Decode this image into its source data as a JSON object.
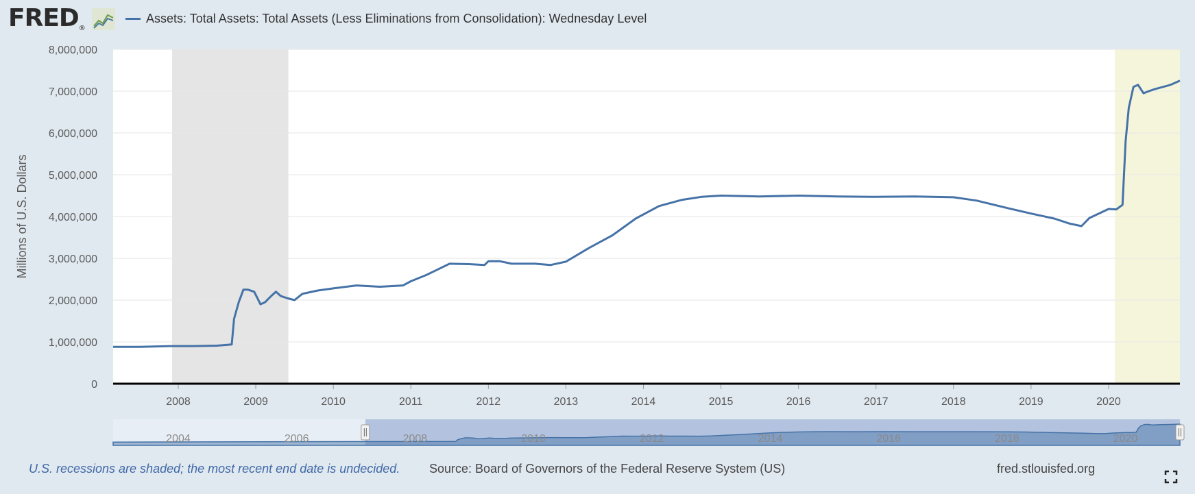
{
  "logo": {
    "text": "FRED",
    "registered": "®"
  },
  "legend": {
    "series_name": "Assets: Total Assets: Total Assets (Less Eliminations from Consolidation): Wednesday Level",
    "color": "#4572a7"
  },
  "footer": {
    "recession_note": "U.S. recessions are shaded; the most recent end date is undecided.",
    "source": "Source: Board of Governors of the Federal Reserve System (US)",
    "site": "fred.stlouisfed.org"
  },
  "chart_data": {
    "type": "line",
    "title": "",
    "xlabel": "",
    "ylabel": "Millions of U.S. Dollars",
    "xlim": [
      2007.16,
      2020.92
    ],
    "ylim": [
      0,
      8000000
    ],
    "y_ticks": [
      "0",
      "1,000,000",
      "2,000,000",
      "3,000,000",
      "4,000,000",
      "5,000,000",
      "6,000,000",
      "7,000,000",
      "8,000,000"
    ],
    "x_ticks": [
      "2008",
      "2009",
      "2010",
      "2011",
      "2012",
      "2013",
      "2014",
      "2015",
      "2016",
      "2017",
      "2018",
      "2019",
      "2020"
    ],
    "grid": true,
    "recessions": [
      {
        "start": 2007.92,
        "end": 2009.42,
        "color": "#e5e5e5"
      },
      {
        "start": 2020.08,
        "end": 2020.92,
        "color": "#f5f5dc"
      }
    ],
    "series": [
      {
        "name": "Assets: Total Assets: Total Assets (Less Eliminations from Consolidation): Wednesday Level",
        "color": "#4572a7",
        "x": [
          2007.16,
          2007.5,
          2007.9,
          2008.2,
          2008.5,
          2008.69,
          2008.72,
          2008.78,
          2008.84,
          2008.9,
          2008.98,
          2009.06,
          2009.12,
          2009.2,
          2009.26,
          2009.32,
          2009.4,
          2009.5,
          2009.6,
          2009.8,
          2010.0,
          2010.3,
          2010.6,
          2010.9,
          2011.0,
          2011.2,
          2011.5,
          2011.75,
          2011.95,
          2012.0,
          2012.15,
          2012.3,
          2012.6,
          2012.8,
          2013.0,
          2013.3,
          2013.6,
          2013.9,
          2014.2,
          2014.5,
          2014.75,
          2015.0,
          2015.5,
          2016.0,
          2016.5,
          2017.0,
          2017.5,
          2018.0,
          2018.3,
          2018.7,
          2019.0,
          2019.3,
          2019.5,
          2019.65,
          2019.75,
          2019.85,
          2020.0,
          2020.1,
          2020.18,
          2020.22,
          2020.26,
          2020.32,
          2020.38,
          2020.45,
          2020.52,
          2020.6,
          2020.7,
          2020.8,
          2020.92
        ],
        "values": [
          880000,
          880000,
          900000,
          900000,
          910000,
          940000,
          1550000,
          1950000,
          2250000,
          2250000,
          2200000,
          1900000,
          1950000,
          2100000,
          2200000,
          2100000,
          2050000,
          2000000,
          2150000,
          2230000,
          2280000,
          2350000,
          2320000,
          2350000,
          2450000,
          2600000,
          2870000,
          2860000,
          2840000,
          2930000,
          2930000,
          2870000,
          2870000,
          2840000,
          2920000,
          3250000,
          3550000,
          3950000,
          4250000,
          4400000,
          4470000,
          4500000,
          4480000,
          4500000,
          4480000,
          4470000,
          4480000,
          4460000,
          4380000,
          4200000,
          4070000,
          3950000,
          3830000,
          3770000,
          3960000,
          4050000,
          4180000,
          4170000,
          4280000,
          5800000,
          6600000,
          7100000,
          7150000,
          6950000,
          7000000,
          7050000,
          7100000,
          7150000,
          7250000
        ]
      }
    ],
    "navigator": {
      "ticks": [
        "2004",
        "2006",
        "2008",
        "2010",
        "2012",
        "2014",
        "2016",
        "2018",
        "2020"
      ],
      "range": [
        2002.9,
        2020.92
      ],
      "selection": [
        2007.16,
        2020.92
      ]
    }
  }
}
